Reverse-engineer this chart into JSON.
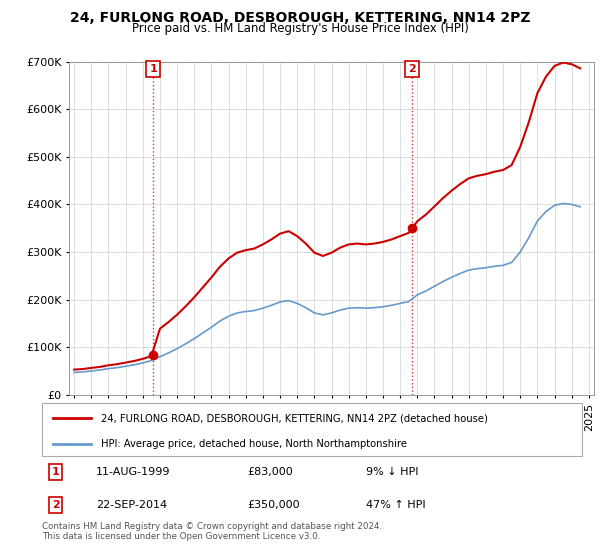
{
  "title": "24, FURLONG ROAD, DESBOROUGH, KETTERING, NN14 2PZ",
  "subtitle": "Price paid vs. HM Land Registry's House Price Index (HPI)",
  "legend_line1": "24, FURLONG ROAD, DESBOROUGH, KETTERING, NN14 2PZ (detached house)",
  "legend_line2": "HPI: Average price, detached house, North Northamptonshire",
  "transaction1_date": "11-AUG-1999",
  "transaction1_price": 83000,
  "transaction1_hpi_pct": "9% ↓ HPI",
  "transaction2_date": "22-SEP-2014",
  "transaction2_price": 350000,
  "transaction2_hpi_pct": "47% ↑ HPI",
  "footnote": "Contains HM Land Registry data © Crown copyright and database right 2024.\nThis data is licensed under the Open Government Licence v3.0.",
  "ylim": [
    0,
    700000
  ],
  "yticks": [
    0,
    100000,
    200000,
    300000,
    400000,
    500000,
    600000,
    700000
  ],
  "price_color": "#cc0000",
  "hpi_color": "#6699cc",
  "sale1_year": 1999.6,
  "sale1_price": 83000,
  "sale2_year": 2014.7,
  "sale2_price": 350000,
  "hpi_data_x": [
    1995.0,
    1995.5,
    1996.0,
    1996.5,
    1997.0,
    1997.5,
    1998.0,
    1998.5,
    1999.0,
    1999.5,
    2000.0,
    2000.5,
    2001.0,
    2001.5,
    2002.0,
    2002.5,
    2003.0,
    2003.5,
    2004.0,
    2004.5,
    2005.0,
    2005.5,
    2006.0,
    2006.5,
    2007.0,
    2007.5,
    2008.0,
    2008.5,
    2009.0,
    2009.5,
    2010.0,
    2010.5,
    2011.0,
    2011.5,
    2012.0,
    2012.5,
    2013.0,
    2013.5,
    2014.0,
    2014.5,
    2015.0,
    2015.5,
    2016.0,
    2016.5,
    2017.0,
    2017.5,
    2018.0,
    2018.5,
    2019.0,
    2019.5,
    2020.0,
    2020.5,
    2021.0,
    2021.5,
    2022.0,
    2022.5,
    2023.0,
    2023.5,
    2024.0,
    2024.5
  ],
  "hpi_data_y": [
    47000,
    48000,
    50000,
    52000,
    55000,
    57000,
    60000,
    63000,
    67000,
    72000,
    80000,
    88000,
    97000,
    107000,
    118000,
    130000,
    142000,
    155000,
    165000,
    172000,
    175000,
    177000,
    182000,
    188000,
    195000,
    198000,
    192000,
    183000,
    172000,
    168000,
    172000,
    178000,
    182000,
    183000,
    182000,
    183000,
    185000,
    188000,
    192000,
    196000,
    210000,
    218000,
    228000,
    238000,
    247000,
    255000,
    262000,
    265000,
    267000,
    270000,
    272000,
    278000,
    300000,
    330000,
    365000,
    385000,
    398000,
    402000,
    400000,
    395000
  ],
  "xlim_left": 1994.7,
  "xlim_right": 2025.3
}
